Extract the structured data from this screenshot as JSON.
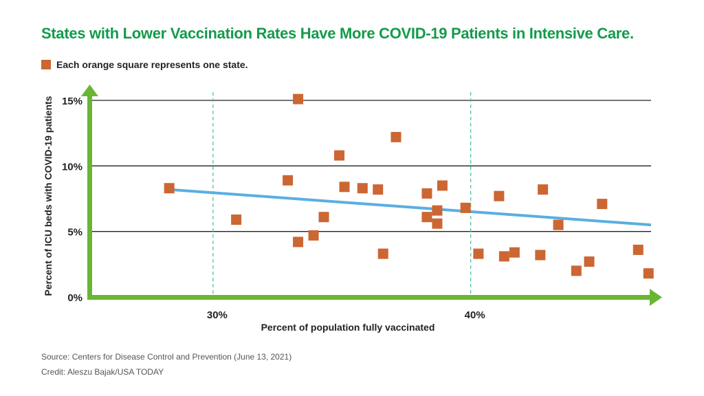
{
  "chart_data": {
    "type": "scatter",
    "title": "States with Lower Vaccination Rates Have More COVID-19 Patients in Intensive Care.",
    "legend": "Each orange square represents one state.",
    "xlabel": "Percent of population fully vaccinated",
    "ylabel": "Percent of ICU beds with COVID-19 patients",
    "xlim": [
      25.2,
      47
    ],
    "ylim": [
      0,
      15
    ],
    "x_ticks": [
      {
        "value": 30,
        "label": "30%"
      },
      {
        "value": 40,
        "label": "40%"
      }
    ],
    "y_ticks": [
      {
        "value": 0,
        "label": "0%"
      },
      {
        "value": 5,
        "label": "5%"
      },
      {
        "value": 10,
        "label": "10%"
      },
      {
        "value": 15,
        "label": "15%"
      }
    ],
    "vertical_reference_lines": [
      30,
      40
    ],
    "trendline": {
      "x": [
        28.3,
        47
      ],
      "y": [
        8.2,
        5.5
      ]
    },
    "points": [
      {
        "x": 28.3,
        "y": 8.3
      },
      {
        "x": 30.9,
        "y": 5.9
      },
      {
        "x": 32.9,
        "y": 8.9
      },
      {
        "x": 33.3,
        "y": 15.1
      },
      {
        "x": 33.3,
        "y": 4.2
      },
      {
        "x": 33.9,
        "y": 4.7
      },
      {
        "x": 34.3,
        "y": 6.1
      },
      {
        "x": 34.9,
        "y": 10.8
      },
      {
        "x": 35.1,
        "y": 8.4
      },
      {
        "x": 35.8,
        "y": 8.3
      },
      {
        "x": 36.4,
        "y": 8.2
      },
      {
        "x": 36.6,
        "y": 3.3
      },
      {
        "x": 37.1,
        "y": 12.2
      },
      {
        "x": 38.3,
        "y": 7.9
      },
      {
        "x": 38.3,
        "y": 6.1
      },
      {
        "x": 38.7,
        "y": 6.6
      },
      {
        "x": 38.7,
        "y": 5.6
      },
      {
        "x": 38.9,
        "y": 8.5
      },
      {
        "x": 39.8,
        "y": 6.8
      },
      {
        "x": 40.3,
        "y": 3.3
      },
      {
        "x": 41.1,
        "y": 7.7
      },
      {
        "x": 41.3,
        "y": 3.1
      },
      {
        "x": 41.7,
        "y": 3.4
      },
      {
        "x": 42.7,
        "y": 3.2
      },
      {
        "x": 42.8,
        "y": 8.2
      },
      {
        "x": 43.4,
        "y": 5.5
      },
      {
        "x": 44.1,
        "y": 2.0
      },
      {
        "x": 44.6,
        "y": 2.7
      },
      {
        "x": 45.1,
        "y": 7.1
      },
      {
        "x": 46.5,
        "y": 3.6
      },
      {
        "x": 46.9,
        "y": 1.8
      }
    ]
  },
  "footer": {
    "source": "Source: Centers for Disease Control and Prevention (June 13, 2021)",
    "credit": "Credit: Aleszu Bajak/USA TODAY"
  },
  "colors": {
    "title": "#129b4a",
    "axis": "#6ab634",
    "marker": "#cc6633",
    "trend": "#5aaee0",
    "grid": "#222222",
    "refline": "#4cc6a0"
  }
}
